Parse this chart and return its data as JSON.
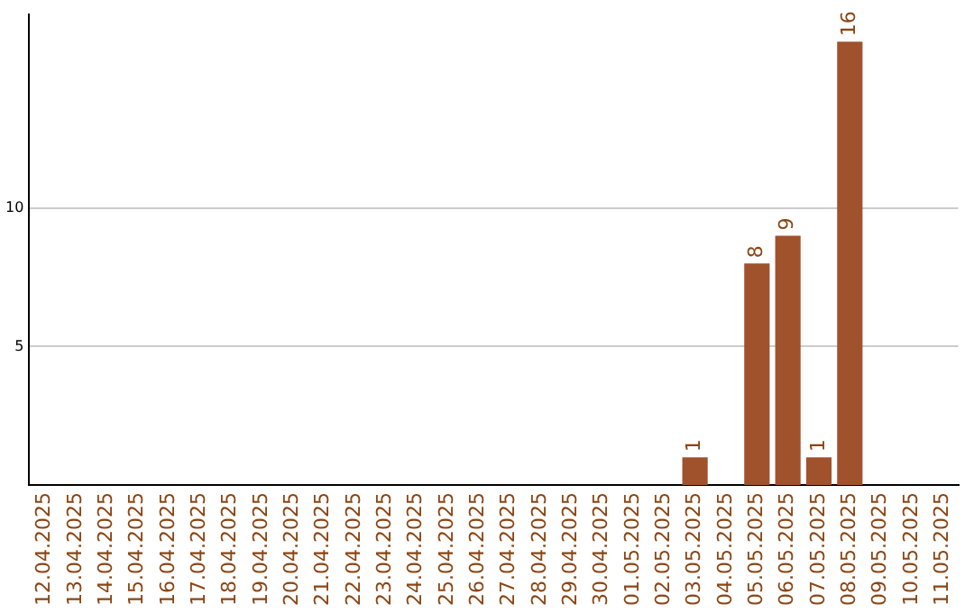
{
  "chart_data": {
    "type": "bar",
    "categories": [
      "12.04.2025",
      "13.04.2025",
      "14.04.2025",
      "15.04.2025",
      "16.04.2025",
      "17.04.2025",
      "18.04.2025",
      "19.04.2025",
      "20.04.2025",
      "21.04.2025",
      "22.04.2025",
      "23.04.2025",
      "24.04.2025",
      "25.04.2025",
      "26.04.2025",
      "27.04.2025",
      "28.04.2025",
      "29.04.2025",
      "30.04.2025",
      "01.05.2025",
      "02.05.2025",
      "03.05.2025",
      "04.05.2025",
      "05.05.2025",
      "06.05.2025",
      "07.05.2025",
      "08.05.2025",
      "09.05.2025",
      "10.05.2025",
      "11.05.2025"
    ],
    "values": [
      null,
      null,
      null,
      null,
      null,
      null,
      null,
      null,
      null,
      null,
      null,
      null,
      null,
      null,
      null,
      null,
      null,
      null,
      null,
      null,
      null,
      1,
      null,
      8,
      9,
      1,
      16,
      null,
      null,
      null
    ],
    "color": "#a0522d",
    "ylim": [
      0,
      17
    ],
    "yticks": [
      5,
      10
    ],
    "grid": "y",
    "data_labels": true,
    "legend": false
  }
}
